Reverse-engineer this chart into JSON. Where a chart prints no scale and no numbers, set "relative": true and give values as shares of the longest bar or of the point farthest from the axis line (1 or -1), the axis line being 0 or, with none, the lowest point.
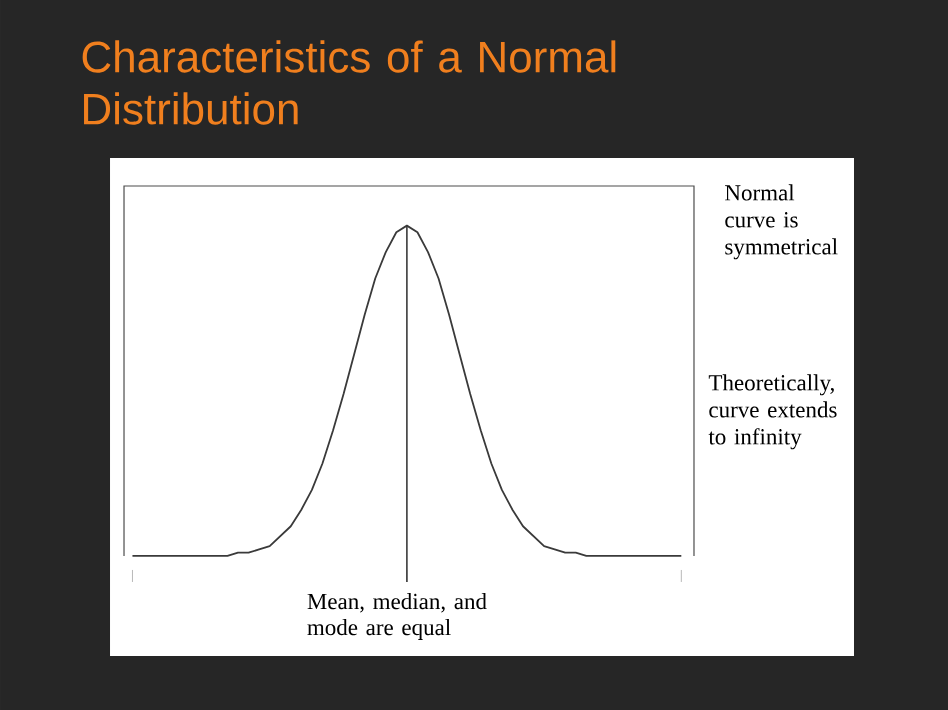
{
  "chart_data": {
    "type": "line",
    "title": "Characteristics of a Normal Distribution",
    "relative": true,
    "categories": [
      null,
      null,
      null,
      null,
      null,
      null,
      null,
      null,
      null,
      null,
      null,
      null,
      null,
      null,
      null,
      null,
      null,
      null,
      null,
      null,
      null,
      null,
      null,
      null,
      null,
      null,
      null,
      null,
      null,
      null,
      null,
      null,
      null,
      null,
      null,
      null,
      null,
      null,
      null,
      null,
      null,
      null,
      null,
      null,
      null,
      null,
      null,
      null,
      null,
      null,
      null,
      null,
      null
    ],
    "series": [
      {
        "color": "#3a3a3a",
        "values": [
          0,
          0,
          0,
          0,
          0,
          0,
          0,
          0,
          0,
          0,
          0.01,
          0.01,
          0.02,
          0.03,
          0.06,
          0.09,
          0.14,
          0.2,
          0.28,
          0.38,
          0.49,
          0.61,
          0.73,
          0.84,
          0.92,
          0.98,
          1,
          0.98,
          0.92,
          0.84,
          0.73,
          0.61,
          0.49,
          0.38,
          0.28,
          0.2,
          0.14,
          0.09,
          0.06,
          0.03,
          0.02,
          0.01,
          0.01,
          0,
          0,
          0,
          0,
          0,
          0,
          0,
          0,
          0,
          0
        ]
      }
    ],
    "ref_lines": [
      {
        "axis": "x",
        "label": "Mean, median, and mode are equal",
        "color": "#3a3a3a"
      }
    ],
    "annotations": [
      "Normal curve is symmetrical",
      "Theoretically, curve extends to infinity"
    ]
  }
}
